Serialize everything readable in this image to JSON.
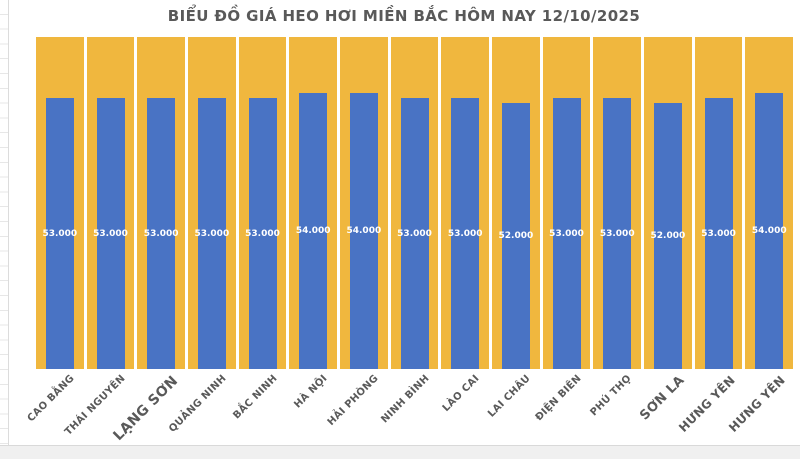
{
  "chart_data": {
    "type": "bar",
    "title": "BIỂU ĐỒ GIÁ HEO HƠI MIỀN BẮC HÔM NAY 12/10/2025",
    "categories": [
      "CAO BẰNG",
      "THÁI NGUYÊN",
      "LẠNG SƠN",
      "QUẢNG NINH",
      "BẮC NINH",
      "HÀ NỘI",
      "HẢI PHÒNG",
      "NINH BÌNH",
      "LÀO CAI",
      "LAI CHÂU",
      "ĐIỆN BIÊN",
      "PHÚ THỌ",
      "SƠN LA",
      "HƯNG YÊN",
      "HƯNG YÊN"
    ],
    "values": [
      53000,
      53000,
      53000,
      53000,
      53000,
      54000,
      54000,
      53000,
      53000,
      52000,
      53000,
      53000,
      52000,
      53000,
      54000
    ],
    "value_labels": [
      "53.000",
      "53.000",
      "53.000",
      "53.000",
      "53.000",
      "54.000",
      "54.000",
      "53.000",
      "53.000",
      "52.000",
      "53.000",
      "53.000",
      "52.000",
      "53.000",
      "54.000"
    ],
    "xlabel": "",
    "ylabel": "",
    "ylim": [
      0,
      65000
    ],
    "grid": false,
    "legend": false,
    "x_tick_rotation_deg": 45,
    "x_tick_font_px": [
      10,
      10,
      14,
      10,
      10,
      10,
      10,
      10,
      10,
      10,
      10,
      10,
      13,
      12,
      12
    ],
    "value_label_position": "inside-center",
    "background_columns": {
      "style": "full-height column behind each bar",
      "color": "#F0B73E"
    }
  },
  "colors": {
    "title_text": "#595959",
    "axis_label_text": "#595959",
    "bar_fill": "#4973C4",
    "background_column_fill": "#F0B73E",
    "value_label_text": "#FFFFFF",
    "canvas": "#FFFFFF",
    "worksheet_gridline": "#E7E7E7",
    "bottom_strip": "#F0F0F0",
    "border_line": "#D9D9D9"
  }
}
